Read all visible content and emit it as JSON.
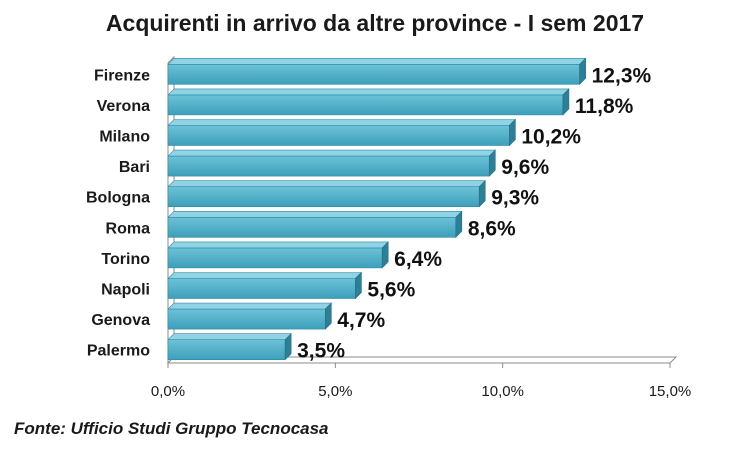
{
  "chart_data": {
    "type": "bar",
    "orientation": "horizontal",
    "title": "Acquirenti in arrivo da altre province - I sem 2017",
    "categories": [
      "Firenze",
      "Verona",
      "Milano",
      "Bari",
      "Bologna",
      "Roma",
      "Torino",
      "Napoli",
      "Genova",
      "Palermo"
    ],
    "values": [
      12.3,
      11.8,
      10.2,
      9.6,
      9.3,
      8.6,
      6.4,
      5.6,
      4.7,
      3.5
    ],
    "value_labels": [
      "12,3%",
      "11,8%",
      "10,2%",
      "9,6%",
      "9,3%",
      "8,6%",
      "6,4%",
      "5,6%",
      "4,7%",
      "3,5%"
    ],
    "xlim": [
      0,
      15
    ],
    "xticks": [
      0,
      5,
      10,
      15
    ],
    "xtick_labels": [
      "0,0%",
      "5,0%",
      "10,0%",
      "15,0%"
    ],
    "xlabel": "",
    "ylabel": "",
    "grid": false,
    "legend": "none",
    "bar_color": "#4bacc6"
  },
  "source_note": "Fonte: Ufficio Studi Gruppo Tecnocasa"
}
